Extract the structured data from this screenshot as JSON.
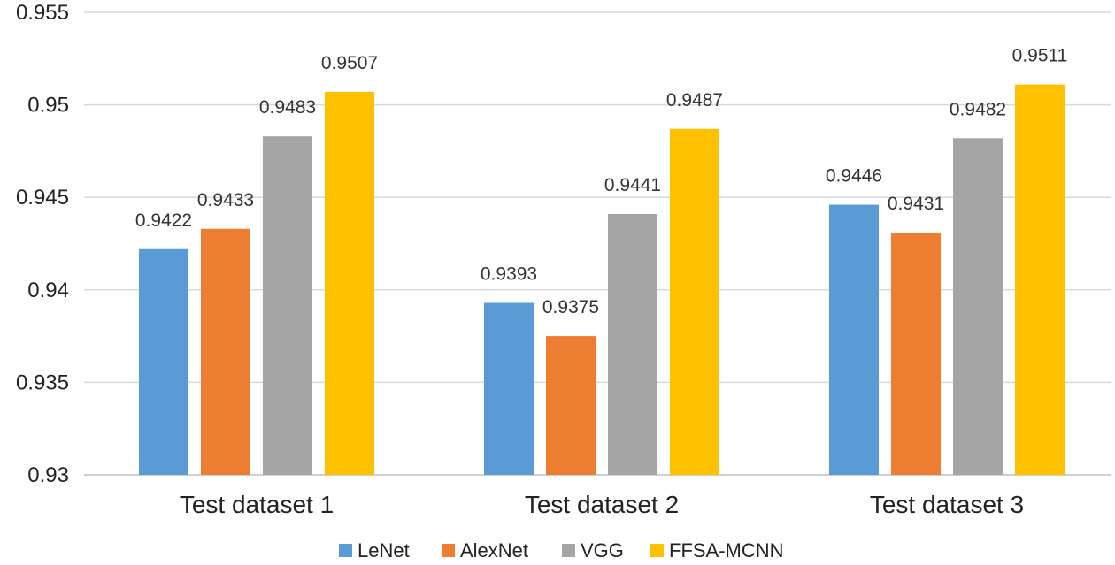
{
  "chart_data": {
    "type": "bar",
    "categories": [
      "Test dataset 1",
      "Test dataset 2",
      "Test dataset 3"
    ],
    "series": [
      {
        "name": "LeNet",
        "color": "#5b9bd5",
        "values": [
          0.9422,
          0.9393,
          0.9446
        ]
      },
      {
        "name": "AlexNet",
        "color": "#ed7d31",
        "values": [
          0.9433,
          0.9375,
          0.9431
        ]
      },
      {
        "name": "VGG",
        "color": "#a5a5a5",
        "values": [
          0.9483,
          0.9441,
          0.9482
        ]
      },
      {
        "name": "FFSA-MCNN",
        "color": "#ffc000",
        "values": [
          0.9507,
          0.9487,
          0.9511
        ]
      }
    ],
    "data_labels": [
      [
        "0.9422",
        "0.9433",
        "0.9483",
        "0.9507"
      ],
      [
        "0.9393",
        "0.9375",
        "0.9441",
        "0.9487"
      ],
      [
        "0.9446",
        "0.9431",
        "0.9482",
        "0.9511"
      ]
    ],
    "ylim": [
      0.93,
      0.955
    ],
    "yticks": [
      "0.93",
      "0.935",
      "0.94",
      "0.945",
      "0.95",
      "0.955"
    ],
    "grid": true,
    "legend_position": "bottom-center",
    "title": "",
    "xlabel": "",
    "ylabel": ""
  }
}
